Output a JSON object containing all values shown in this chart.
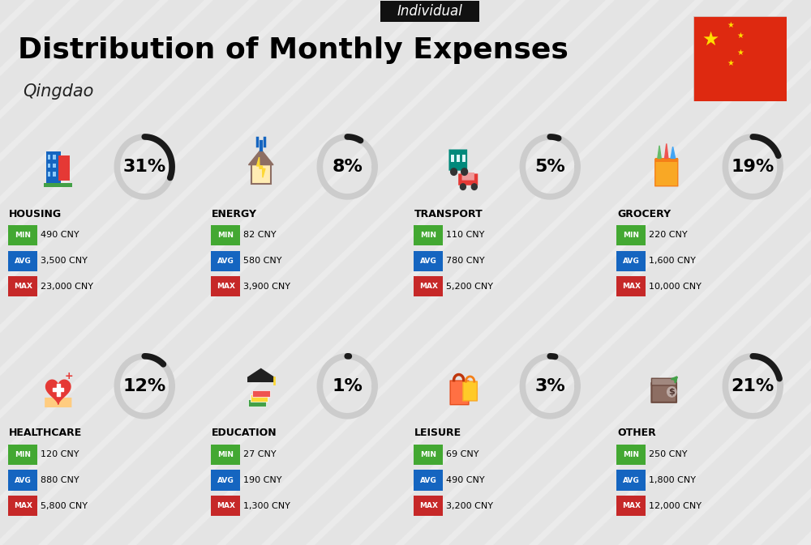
{
  "title": "Distribution of Monthly Expenses",
  "subtitle": "Qingdao",
  "tag": "Individual",
  "bg_color": "#ebebeb",
  "categories": [
    {
      "name": "HOUSING",
      "pct": 31,
      "min": "490 CNY",
      "avg": "3,500 CNY",
      "max": "23,000 CNY",
      "icon": "housing",
      "row": 0,
      "col": 0
    },
    {
      "name": "ENERGY",
      "pct": 8,
      "min": "82 CNY",
      "avg": "580 CNY",
      "max": "3,900 CNY",
      "icon": "energy",
      "row": 0,
      "col": 1
    },
    {
      "name": "TRANSPORT",
      "pct": 5,
      "min": "110 CNY",
      "avg": "780 CNY",
      "max": "5,200 CNY",
      "icon": "transport",
      "row": 0,
      "col": 2
    },
    {
      "name": "GROCERY",
      "pct": 19,
      "min": "220 CNY",
      "avg": "1,600 CNY",
      "max": "10,000 CNY",
      "icon": "grocery",
      "row": 0,
      "col": 3
    },
    {
      "name": "HEALTHCARE",
      "pct": 12,
      "min": "120 CNY",
      "avg": "880 CNY",
      "max": "5,800 CNY",
      "icon": "healthcare",
      "row": 1,
      "col": 0
    },
    {
      "name": "EDUCATION",
      "pct": 1,
      "min": "27 CNY",
      "avg": "190 CNY",
      "max": "1,300 CNY",
      "icon": "education",
      "row": 1,
      "col": 1
    },
    {
      "name": "LEISURE",
      "pct": 3,
      "min": "69 CNY",
      "avg": "490 CNY",
      "max": "3,200 CNY",
      "icon": "leisure",
      "row": 1,
      "col": 2
    },
    {
      "name": "OTHER",
      "pct": 21,
      "min": "250 CNY",
      "avg": "1,800 CNY",
      "max": "12,000 CNY",
      "icon": "other",
      "row": 1,
      "col": 3
    }
  ],
  "min_color": "#43a832",
  "avg_color": "#1565c0",
  "max_color": "#c62828",
  "donut_filled_color": "#1a1a1a",
  "donut_empty_color": "#cccccc",
  "title_fontsize": 26,
  "subtitle_fontsize": 15,
  "tag_fontsize": 12,
  "pct_fontsize": 16,
  "cat_fontsize": 9,
  "badge_fontsize": 6.5,
  "value_fontsize": 8
}
